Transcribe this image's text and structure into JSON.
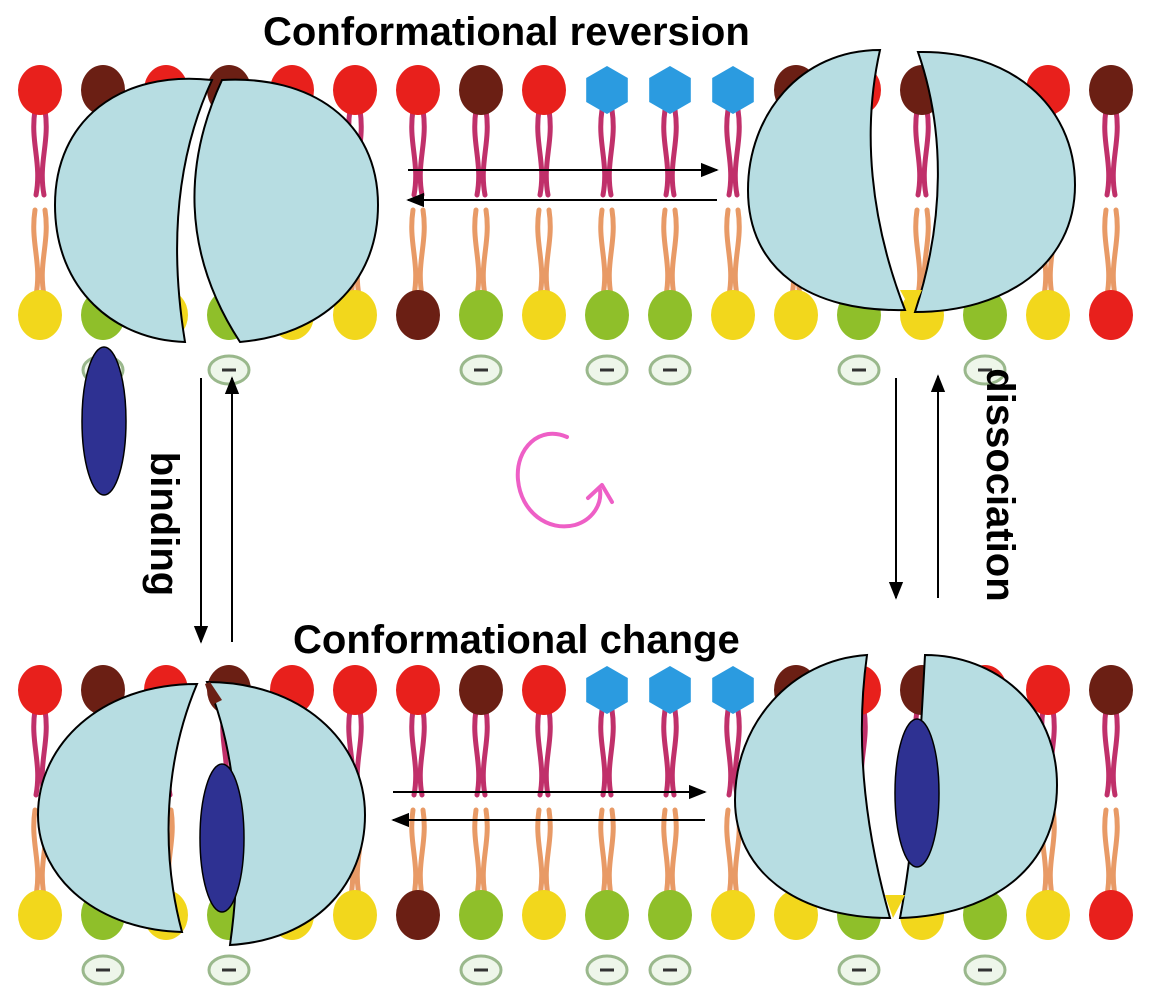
{
  "labels": {
    "top": "Conformational reversion",
    "bottom": "Conformational change",
    "left": "binding",
    "right": "dissociation"
  },
  "colors": {
    "lipid_red": "#e8201c",
    "lipid_brown": "#6b1f14",
    "lipid_blue": "#2b9be0",
    "lipid_yellow": "#f2d71c",
    "lipid_green": "#8fbf2a",
    "tail_pink": "#c0306a",
    "tail_orange": "#e89a66",
    "protein_fill": "#b7dde2",
    "ligand": "#2e3192",
    "cycle_arrow": "#ee5fc6"
  },
  "icons": {
    "cycle": "clockwise-cycle-icon"
  }
}
